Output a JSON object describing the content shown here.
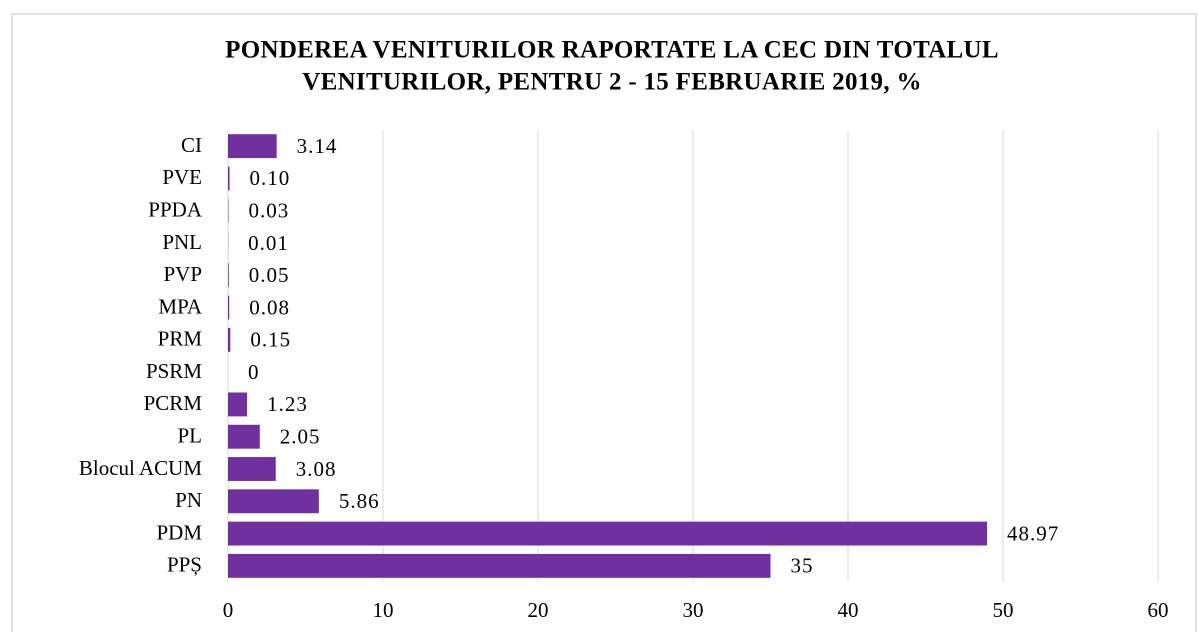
{
  "chart_data": {
    "type": "barh",
    "title": [
      "PONDEREA VENITURILOR RAPORTATE LA CEC DIN TOTALUL",
      "VENITURILOR, PENTRU 2 - 15 FEBRUARIE 2019, %"
    ],
    "categories": [
      "CI",
      "PVE",
      "PPDA",
      "PNL",
      "PVP",
      "MPA",
      "PRM",
      "PSRM",
      "PCRM",
      "PL",
      "Blocul ACUM",
      "PN",
      "PDM",
      "PPȘ"
    ],
    "values": [
      3.14,
      0.1,
      0.03,
      0.01,
      0.05,
      0.08,
      0.15,
      0,
      1.23,
      2.05,
      3.08,
      5.86,
      48.97,
      35
    ],
    "value_labels": [
      "3.14",
      "0.10",
      "0.03",
      "0.01",
      "0.05",
      "0.08",
      "0.15",
      "0",
      "1.23",
      "2.05",
      "3.08",
      "5.86",
      "48.97",
      "35"
    ],
    "color": "#7030a0",
    "xlim": [
      0,
      60
    ],
    "xticks": [
      0,
      10,
      20,
      30,
      40,
      50,
      60
    ],
    "grid": true
  }
}
